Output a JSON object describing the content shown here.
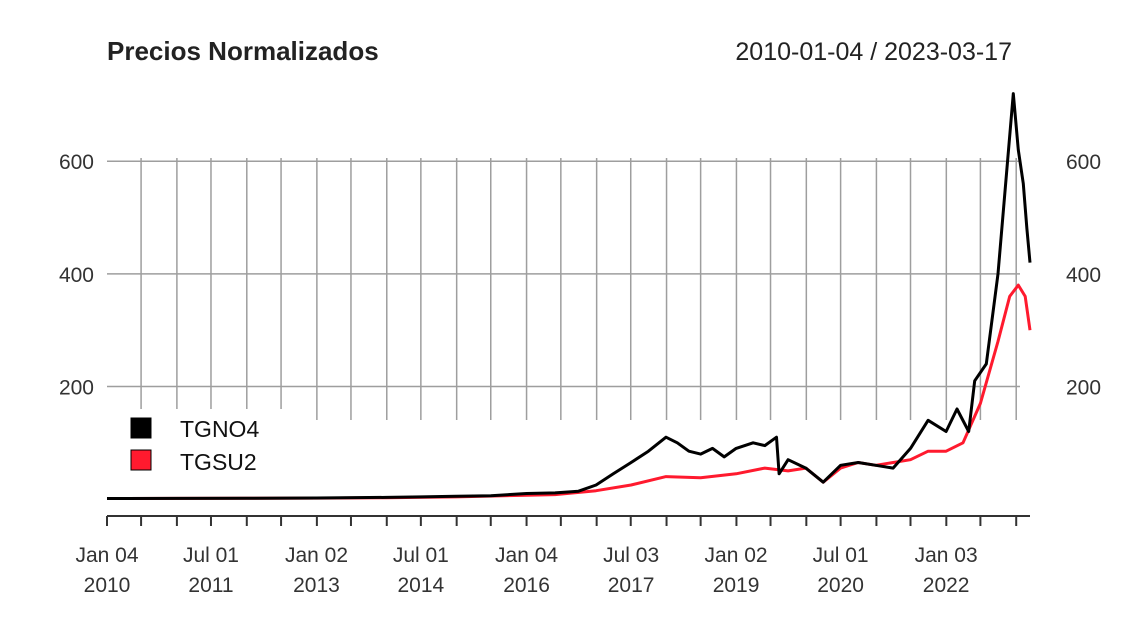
{
  "chart_data": {
    "type": "line",
    "title": "Precios Normalizados",
    "date_range": "2010-01-04 / 2023-03-17",
    "xlabel": "",
    "ylabel": "",
    "x_start": "2010-01-04",
    "x_end": "2023-03-17",
    "ylim": [
      -30,
      730
    ],
    "y_ticks": [
      200,
      400,
      600
    ],
    "grid": true,
    "legend_position": "left",
    "x_ticks": [
      {
        "date": "2010-01-04",
        "label": [
          "Jan 04",
          "2010"
        ]
      },
      {
        "date": "2011-07-01",
        "label": [
          "Jul 01",
          "2011"
        ]
      },
      {
        "date": "2013-01-02",
        "label": [
          "Jan 02",
          "2013"
        ]
      },
      {
        "date": "2014-07-01",
        "label": [
          "Jul 01",
          "2014"
        ]
      },
      {
        "date": "2016-01-04",
        "label": [
          "Jan 04",
          "2016"
        ]
      },
      {
        "date": "2017-07-03",
        "label": [
          "Jul 03",
          "2017"
        ]
      },
      {
        "date": "2019-01-02",
        "label": [
          "Jan 02",
          "2019"
        ]
      },
      {
        "date": "2020-07-01",
        "label": [
          "Jul 01",
          "2020"
        ]
      },
      {
        "date": "2022-01-03",
        "label": [
          "Jan 03",
          "2022"
        ]
      }
    ],
    "series": [
      {
        "name": "TGNO4",
        "color": "#000000",
        "points": [
          [
            "2010-01-04",
            1
          ],
          [
            "2011-01-01",
            1.3
          ],
          [
            "2012-01-01",
            1.5
          ],
          [
            "2013-01-01",
            2
          ],
          [
            "2014-01-01",
            3
          ],
          [
            "2014-07-01",
            4
          ],
          [
            "2015-01-01",
            5
          ],
          [
            "2015-07-01",
            6
          ],
          [
            "2016-01-04",
            10
          ],
          [
            "2016-06-01",
            11
          ],
          [
            "2016-10-01",
            14
          ],
          [
            "2017-01-01",
            25
          ],
          [
            "2017-04-01",
            45
          ],
          [
            "2017-07-03",
            65
          ],
          [
            "2017-10-01",
            85
          ],
          [
            "2018-01-01",
            110
          ],
          [
            "2018-03-01",
            100
          ],
          [
            "2018-05-01",
            85
          ],
          [
            "2018-07-01",
            80
          ],
          [
            "2018-09-01",
            90
          ],
          [
            "2018-11-01",
            75
          ],
          [
            "2019-01-02",
            90
          ],
          [
            "2019-04-01",
            100
          ],
          [
            "2019-06-01",
            95
          ],
          [
            "2019-08-01",
            110
          ],
          [
            "2019-08-15",
            45
          ],
          [
            "2019-10-01",
            70
          ],
          [
            "2020-01-01",
            55
          ],
          [
            "2020-04-01",
            30
          ],
          [
            "2020-07-01",
            60
          ],
          [
            "2020-10-01",
            65
          ],
          [
            "2021-01-01",
            60
          ],
          [
            "2021-04-01",
            55
          ],
          [
            "2021-07-01",
            90
          ],
          [
            "2021-10-01",
            140
          ],
          [
            "2022-01-03",
            120
          ],
          [
            "2022-03-01",
            160
          ],
          [
            "2022-05-01",
            120
          ],
          [
            "2022-06-01",
            210
          ],
          [
            "2022-08-01",
            240
          ],
          [
            "2022-10-01",
            400
          ],
          [
            "2022-11-15",
            580
          ],
          [
            "2022-12-20",
            720
          ],
          [
            "2023-01-15",
            620
          ],
          [
            "2023-02-10",
            560
          ],
          [
            "2023-03-01",
            480
          ],
          [
            "2023-03-17",
            420
          ]
        ]
      },
      {
        "name": "TGSU2",
        "color": "#ff1a2e",
        "points": [
          [
            "2010-01-04",
            1
          ],
          [
            "2011-01-01",
            1.2
          ],
          [
            "2012-01-01",
            1.4
          ],
          [
            "2013-01-01",
            1.8
          ],
          [
            "2014-01-01",
            2.5
          ],
          [
            "2015-01-01",
            4
          ],
          [
            "2016-01-04",
            7
          ],
          [
            "2016-06-01",
            8
          ],
          [
            "2017-01-01",
            15
          ],
          [
            "2017-07-03",
            25
          ],
          [
            "2018-01-01",
            40
          ],
          [
            "2018-07-01",
            38
          ],
          [
            "2019-01-02",
            45
          ],
          [
            "2019-06-01",
            55
          ],
          [
            "2019-10-01",
            50
          ],
          [
            "2020-01-01",
            55
          ],
          [
            "2020-04-01",
            30
          ],
          [
            "2020-07-01",
            55
          ],
          [
            "2020-10-01",
            65
          ],
          [
            "2021-01-01",
            60
          ],
          [
            "2021-07-01",
            70
          ],
          [
            "2021-10-01",
            85
          ],
          [
            "2022-01-03",
            85
          ],
          [
            "2022-04-01",
            100
          ],
          [
            "2022-07-01",
            170
          ],
          [
            "2022-10-01",
            280
          ],
          [
            "2022-12-01",
            360
          ],
          [
            "2023-01-15",
            380
          ],
          [
            "2023-02-20",
            360
          ],
          [
            "2023-03-17",
            300
          ]
        ]
      }
    ]
  }
}
